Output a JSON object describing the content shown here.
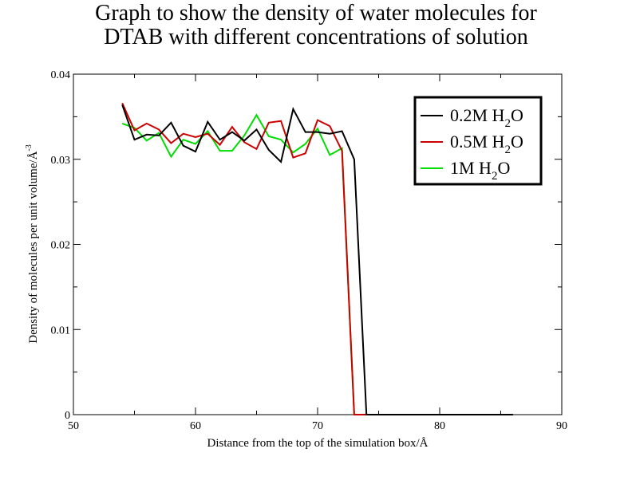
{
  "chart_data": {
    "type": "line",
    "title_line1": "Graph to show the density of water molecules for",
    "title_line2": "DTAB with different concentrations of solution",
    "xlabel": "Distance from the top of the simulation box/Å",
    "ylabel": "Density of molecules per unit volume/Å",
    "ylabel_sup": "-3",
    "xlim": [
      50,
      90
    ],
    "ylim": [
      0,
      0.04
    ],
    "x_ticks": [
      50,
      60,
      70,
      80,
      90
    ],
    "x_tick_labels": [
      "50",
      "60",
      "70",
      "80",
      "90"
    ],
    "y_ticks": [
      0,
      0.01,
      0.02,
      0.03,
      0.04
    ],
    "y_tick_labels": [
      "0",
      "0.01",
      "0.02",
      "0.03",
      "0.04"
    ],
    "grid": false,
    "legend_position": "top-right",
    "series": [
      {
        "label_main": "0.2M H",
        "label_sub": "2",
        "label_end": "O",
        "color": "#000000",
        "x": [
          54,
          55,
          56,
          57,
          58,
          59,
          60,
          61,
          62,
          63,
          64,
          65,
          66,
          67,
          68,
          69,
          70,
          71,
          72,
          73,
          74,
          75,
          76,
          77,
          78,
          79,
          80,
          81,
          82,
          83,
          84,
          85,
          86
        ],
        "y": [
          0.0364,
          0.0323,
          0.0329,
          0.0328,
          0.0343,
          0.0316,
          0.0309,
          0.0344,
          0.0323,
          0.0332,
          0.0322,
          0.0335,
          0.0311,
          0.0297,
          0.0359,
          0.0332,
          0.0332,
          0.033,
          0.0333,
          0.03,
          0,
          0,
          0,
          0,
          0,
          0,
          0,
          0,
          0,
          0,
          0,
          0,
          0
        ]
      },
      {
        "label_main": "0.5M H",
        "label_sub": "2",
        "label_end": "O",
        "color": "#cc0000",
        "x": [
          54,
          55,
          56,
          57,
          58,
          59,
          60,
          61,
          62,
          63,
          64,
          65,
          66,
          67,
          68,
          69,
          70,
          71,
          72,
          73,
          74,
          75,
          76,
          77,
          78,
          79,
          80,
          81,
          82,
          83,
          84,
          85,
          86
        ],
        "y": [
          0.0366,
          0.0334,
          0.0342,
          0.0335,
          0.0319,
          0.033,
          0.0326,
          0.033,
          0.0317,
          0.0338,
          0.032,
          0.0312,
          0.0343,
          0.0345,
          0.0302,
          0.0307,
          0.0346,
          0.0339,
          0.031,
          0,
          0,
          0,
          0,
          0,
          0,
          0,
          0,
          0,
          0,
          0,
          0,
          0,
          0
        ]
      },
      {
        "label_main": "1M H",
        "label_sub": "2",
        "label_end": "O",
        "color": "#00dd00",
        "x": [
          54,
          55,
          56,
          57,
          58,
          59,
          60,
          61,
          62,
          63,
          64,
          65,
          66,
          67,
          68,
          69,
          70,
          71,
          72,
          73,
          74,
          75,
          76,
          77,
          78,
          79,
          80,
          81,
          82,
          83,
          84,
          85,
          86
        ],
        "y": [
          0.0342,
          0.0337,
          0.0322,
          0.0331,
          0.0303,
          0.0323,
          0.0318,
          0.0333,
          0.031,
          0.031,
          0.0328,
          0.0352,
          0.0327,
          0.0323,
          0.0308,
          0.0318,
          0.0336,
          0.0305,
          0.0313,
          0,
          0,
          0,
          0,
          0,
          0,
          0,
          0,
          0,
          0,
          0,
          0,
          0,
          0
        ]
      }
    ]
  }
}
